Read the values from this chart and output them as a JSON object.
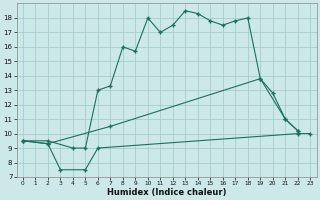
{
  "xlabel": "Humidex (Indice chaleur)",
  "background_color": "#cde8e8",
  "grid_color": "#a0c8c8",
  "line_color": "#1a7060",
  "xlim": [
    -0.5,
    23.5
  ],
  "ylim": [
    7,
    19
  ],
  "series": [
    {
      "x": [
        0,
        2,
        4,
        5,
        6,
        7,
        8,
        9,
        10,
        11,
        12,
        13,
        14,
        15,
        16,
        17,
        18,
        19,
        20,
        21,
        22
      ],
      "y": [
        9.5,
        9.5,
        9.0,
        9.0,
        13.0,
        13.3,
        16.0,
        15.7,
        18.0,
        17.0,
        17.5,
        18.5,
        18.3,
        17.8,
        17.5,
        17.8,
        18.0,
        13.8,
        12.8,
        11.0,
        10.2
      ]
    },
    {
      "x": [
        0,
        2,
        7,
        19,
        21,
        22
      ],
      "y": [
        9.5,
        9.3,
        10.5,
        13.8,
        11.0,
        10.2
      ]
    },
    {
      "x": [
        0,
        2,
        3,
        5,
        6,
        22,
        23
      ],
      "y": [
        9.5,
        9.3,
        7.5,
        7.5,
        9.0,
        10.0,
        10.0
      ]
    }
  ]
}
